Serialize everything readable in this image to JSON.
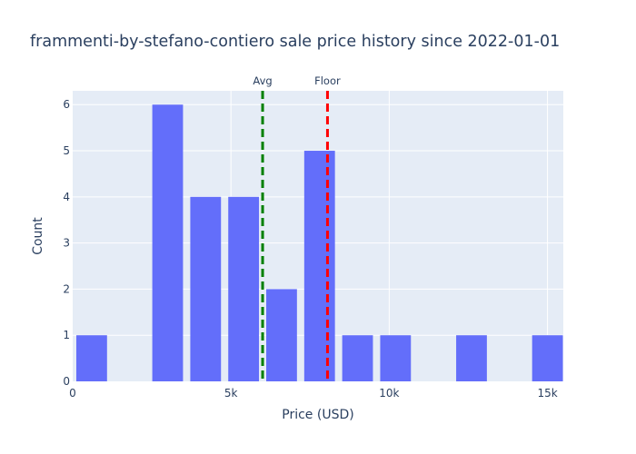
{
  "chart_data": {
    "type": "bar",
    "title": "frammenti-by-stefano-contiero sale price history since 2022-01-01",
    "xlabel": "Price (USD)",
    "ylabel": "Count",
    "xlim": [
      0,
      15500
    ],
    "ylim": [
      0,
      6.3
    ],
    "x_ticks": [
      {
        "value": 0,
        "label": "0"
      },
      {
        "value": 5000,
        "label": "5k"
      },
      {
        "value": 10000,
        "label": "10k"
      },
      {
        "value": 15000,
        "label": "15k"
      }
    ],
    "y_ticks": [
      {
        "value": 0,
        "label": "0"
      },
      {
        "value": 1,
        "label": "1"
      },
      {
        "value": 2,
        "label": "2"
      },
      {
        "value": 3,
        "label": "3"
      },
      {
        "value": 4,
        "label": "4"
      },
      {
        "value": 5,
        "label": "5"
      },
      {
        "value": 6,
        "label": "6"
      }
    ],
    "bin_width": 1200,
    "bins": [
      {
        "start": 0,
        "end": 1200,
        "count": 1
      },
      {
        "start": 1200,
        "end": 2400,
        "count": 0
      },
      {
        "start": 2400,
        "end": 3600,
        "count": 6
      },
      {
        "start": 3600,
        "end": 4800,
        "count": 4
      },
      {
        "start": 4800,
        "end": 6000,
        "count": 4
      },
      {
        "start": 6000,
        "end": 7200,
        "count": 2
      },
      {
        "start": 7200,
        "end": 8400,
        "count": 5
      },
      {
        "start": 8400,
        "end": 9600,
        "count": 1
      },
      {
        "start": 9600,
        "end": 10800,
        "count": 1
      },
      {
        "start": 10800,
        "end": 12000,
        "count": 0
      },
      {
        "start": 12000,
        "end": 13200,
        "count": 1
      },
      {
        "start": 13200,
        "end": 14400,
        "count": 0
      },
      {
        "start": 14400,
        "end": 15600,
        "count": 1
      }
    ],
    "reference_lines": [
      {
        "label": "Avg",
        "value": 6000,
        "color": "#008000"
      },
      {
        "label": "Floor",
        "value": 8050,
        "color": "#ff0000"
      }
    ],
    "bar_color": "#636efa",
    "plot_bg": "#e5ecf6",
    "grid": true
  }
}
